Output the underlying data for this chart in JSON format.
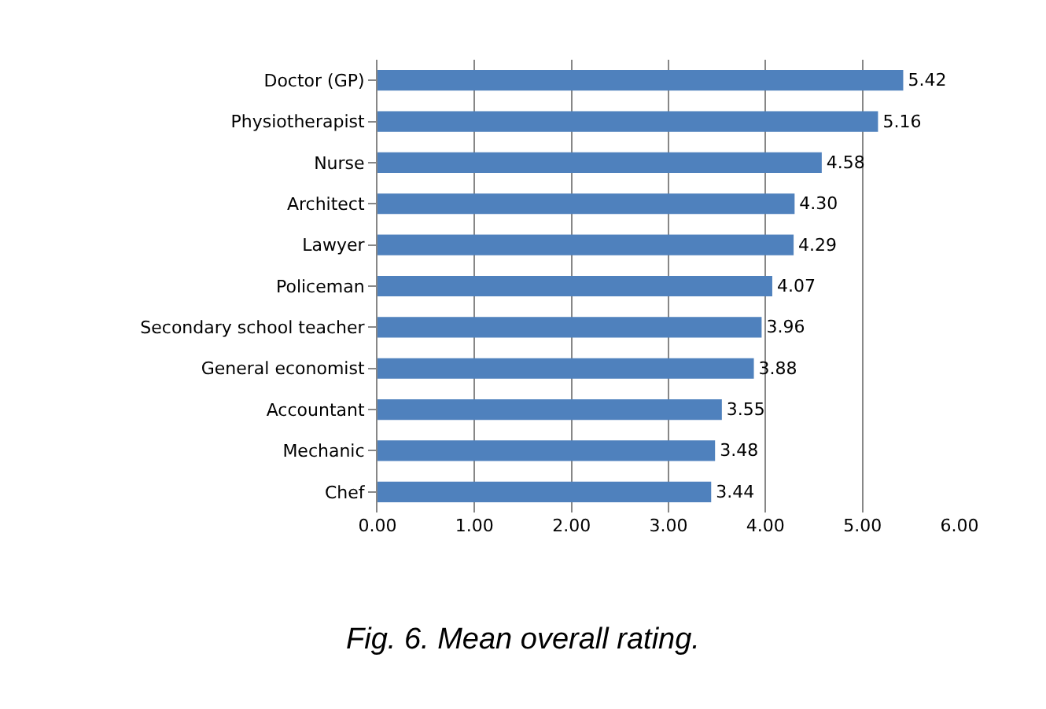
{
  "chart_data": {
    "type": "bar",
    "orientation": "horizontal",
    "title": "Fig. 6. Mean overall rating.",
    "categories": [
      "Doctor (GP)",
      "Physiotherapist",
      "Nurse",
      "Architect",
      "Lawyer",
      "Policeman",
      "Secondary school teacher",
      "General economist",
      "Accountant",
      "Mechanic",
      "Chef"
    ],
    "values": [
      5.42,
      5.16,
      4.58,
      4.3,
      4.29,
      4.07,
      3.96,
      3.88,
      3.55,
      3.48,
      3.44
    ],
    "value_labels": [
      "5.42",
      "5.16",
      "4.58",
      "4.30",
      "4.29",
      "4.07",
      "3.96",
      "3.88",
      "3.55",
      "3.48",
      "3.44"
    ],
    "color": "#4f81bd",
    "xlim": [
      0,
      6
    ],
    "xticks": [
      {
        "value": 0,
        "label": "0.00"
      },
      {
        "value": 1,
        "label": "1.00"
      },
      {
        "value": 2,
        "label": "2.00"
      },
      {
        "value": 3,
        "label": "3.00"
      },
      {
        "value": 4,
        "label": "4.00"
      },
      {
        "value": 5,
        "label": "5.00"
      },
      {
        "value": 6,
        "label": "6.00"
      }
    ],
    "grid": "x",
    "legend": false
  }
}
